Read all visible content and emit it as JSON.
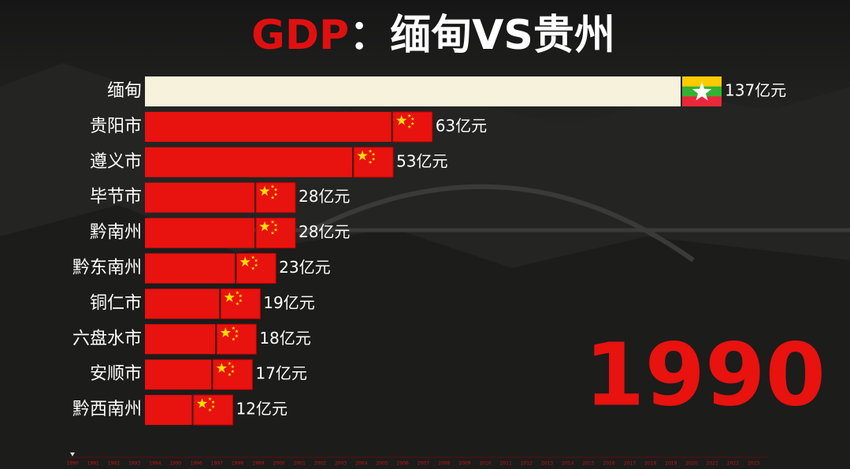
{
  "chart_data": {
    "type": "bar",
    "title_parts": [
      {
        "text": "GDP",
        "color": "#e01010"
      },
      {
        "text": "：缅甸VS贵州",
        "color": "#ffffff"
      }
    ],
    "categories": [
      "缅甸",
      "贵阳市",
      "遵义市",
      "毕节市",
      "黔南州",
      "黔东南州",
      "铜仁市",
      "六盘水市",
      "安顺市",
      "黔西南州"
    ],
    "values": [
      137,
      63,
      53,
      28,
      28,
      23,
      19,
      18,
      17,
      12
    ],
    "value_labels": [
      "137亿元",
      "63亿元",
      "53亿元",
      "28亿元",
      "28亿元",
      "23亿元",
      "19亿元",
      "18亿元",
      "17亿元",
      "12亿元"
    ],
    "colors": [
      "#f6f2dc",
      "#e8120f",
      "#e8120f",
      "#e8120f",
      "#e8120f",
      "#e8120f",
      "#e8120f",
      "#e8120f",
      "#e8120f",
      "#e8120f"
    ],
    "flags": [
      "mm",
      "cn",
      "cn",
      "cn",
      "cn",
      "cn",
      "cn",
      "cn",
      "cn",
      "cn"
    ],
    "year": 1990,
    "timeline": [
      1990,
      1991,
      1992,
      1993,
      1994,
      1995,
      1996,
      1997,
      1998,
      1999,
      2000,
      2001,
      2002,
      2003,
      2004,
      2005,
      2006,
      2007,
      2008,
      2009,
      2010,
      2011,
      2012,
      2013,
      2014,
      2015,
      2016,
      2017,
      2018,
      2019,
      2020,
      2021,
      2022,
      2023
    ]
  }
}
